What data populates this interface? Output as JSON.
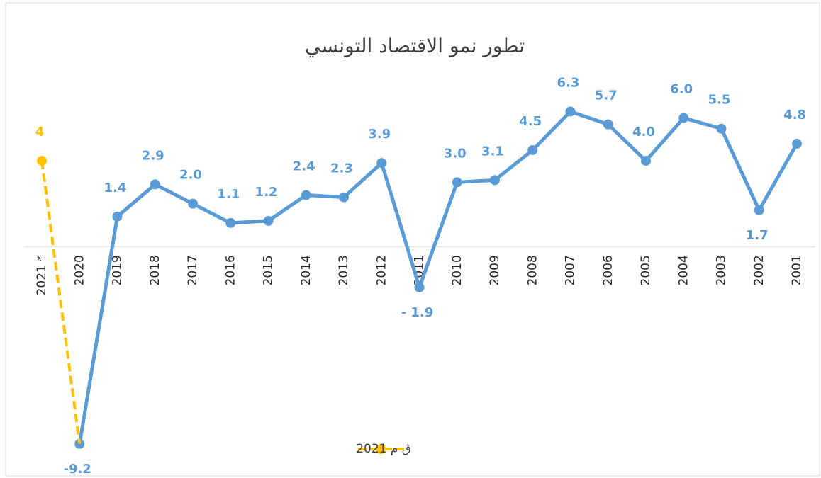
{
  "chart_data": {
    "type": "line",
    "title": "تطور نمو الاقتصاد التونسي",
    "categories": [
      "2021 *",
      "2020",
      "2019",
      "2018",
      "2017",
      "2016",
      "2015",
      "2014",
      "2013",
      "2012",
      "2011",
      "2010",
      "2009",
      "2008",
      "2007",
      "2006",
      "2005",
      "2004",
      "2003",
      "2002",
      "2001"
    ],
    "series": [
      {
        "name": null,
        "color": "#5b9bd5",
        "dashed": false,
        "values": [
          null,
          -9.2,
          1.4,
          2.9,
          2.0,
          1.1,
          1.2,
          2.4,
          2.3,
          3.9,
          -1.9,
          3.0,
          3.1,
          4.5,
          6.3,
          5.7,
          4.0,
          6.0,
          5.5,
          1.7,
          4.8
        ],
        "value_labels": [
          null,
          "-9.2",
          "1.4",
          "2.9",
          "2.0",
          "1.1",
          "1.2",
          "2.4",
          "2.3",
          "3.9",
          "- 1.9",
          "3.0",
          "3.1",
          "4.5",
          "6.3",
          "5.7",
          "4.0",
          "6.0",
          "5.5",
          "1.7",
          "4.8"
        ]
      },
      {
        "name": "ق م 2021",
        "color": "#ffc000",
        "dashed": true,
        "values": [
          4,
          -9.2,
          null,
          null,
          null,
          null,
          null,
          null,
          null,
          null,
          null,
          null,
          null,
          null,
          null,
          null,
          null,
          null,
          null,
          null,
          null
        ],
        "value_labels": [
          "4",
          null,
          null,
          null,
          null,
          null,
          null,
          null,
          null,
          null,
          null,
          null,
          null,
          null,
          null,
          null,
          null,
          null,
          null,
          null,
          null
        ]
      }
    ],
    "ylim": [
      -10,
      8
    ],
    "legend": "bottom"
  }
}
